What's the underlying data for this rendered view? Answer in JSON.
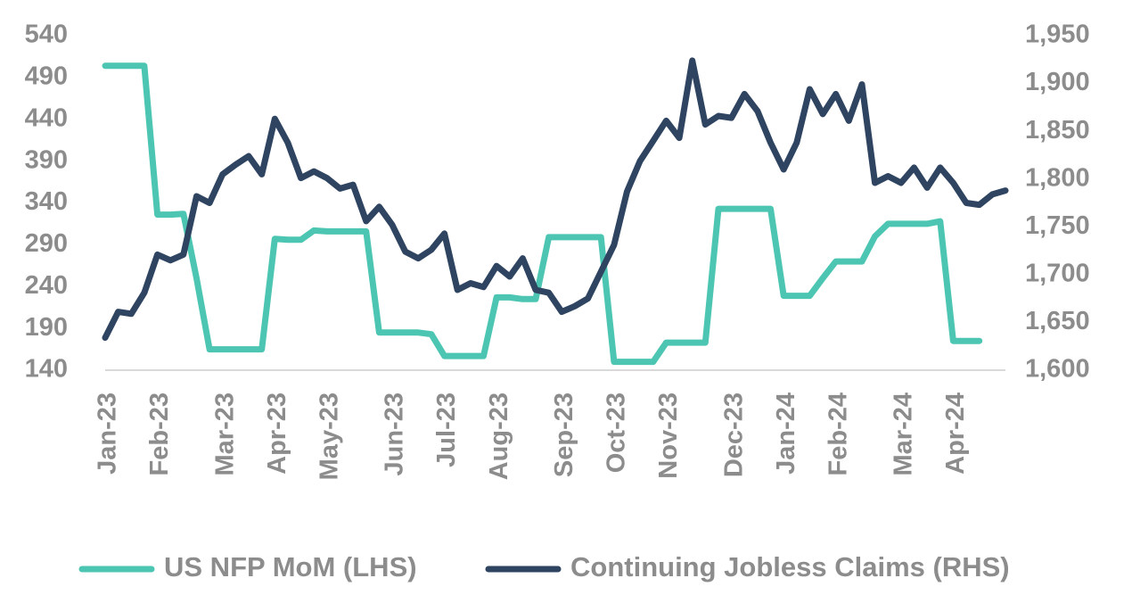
{
  "chart_data": {
    "type": "line",
    "categories": [
      "Jan-23",
      null,
      null,
      null,
      "Feb-23",
      null,
      null,
      null,
      null,
      "Mar-23",
      null,
      null,
      null,
      "Apr-23",
      null,
      null,
      null,
      "May-23",
      null,
      null,
      null,
      null,
      "Jun-23",
      null,
      null,
      null,
      "Jul-23",
      null,
      null,
      null,
      "Aug-23",
      null,
      null,
      null,
      null,
      "Sep-23",
      null,
      null,
      null,
      "Oct-23",
      null,
      null,
      null,
      "Nov-23",
      null,
      null,
      null,
      null,
      "Dec-23",
      null,
      null,
      null,
      "Jan-24",
      null,
      null,
      null,
      "Feb-24",
      null,
      null,
      null,
      null,
      "Mar-24",
      null,
      null,
      null,
      "Apr-24",
      null,
      null,
      null,
      null
    ],
    "series": [
      {
        "name": "US NFP MoM (LHS)",
        "color": "#4cc6b2",
        "axis": "y",
        "values": [
          504,
          504,
          504,
          504,
          326,
          326,
          327,
          250,
          165,
          165,
          165,
          165,
          165,
          297,
          296,
          296,
          307,
          306,
          306,
          306,
          306,
          185,
          185,
          185,
          185,
          183,
          157,
          157,
          157,
          157,
          227,
          227,
          225,
          225,
          299,
          299,
          299,
          299,
          299,
          150,
          150,
          150,
          150,
          173,
          173,
          173,
          173,
          333,
          333,
          333,
          333,
          333,
          229,
          229,
          229,
          250,
          270,
          270,
          270,
          300,
          315,
          315,
          315,
          315,
          318,
          175,
          175,
          175,
          null,
          null
        ]
      },
      {
        "name": "Continuing Jobless Claims (RHS)",
        "color": "#2e4461",
        "axis": "y2",
        "values": [
          1634,
          1661,
          1659,
          1681,
          1721,
          1715,
          1721,
          1782,
          1775,
          1805,
          1815,
          1824,
          1805,
          1863,
          1838,
          1801,
          1808,
          1801,
          1790,
          1794,
          1756,
          1771,
          1752,
          1724,
          1717,
          1726,
          1743,
          1684,
          1691,
          1687,
          1709,
          1698,
          1717,
          1684,
          1681,
          1661,
          1667,
          1675,
          1703,
          1731,
          1787,
          1819,
          1840,
          1861,
          1843,
          1924,
          1857,
          1866,
          1864,
          1889,
          1871,
          1838,
          1810,
          1838,
          1894,
          1868,
          1889,
          1861,
          1899,
          1796,
          1803,
          1796,
          1812,
          1791,
          1812,
          1796,
          1775,
          1773,
          1784,
          1788
        ]
      }
    ],
    "ylim": [
      140,
      540
    ],
    "yticks": [
      140,
      190,
      240,
      290,
      340,
      390,
      440,
      490,
      540
    ],
    "y2lim": [
      1600,
      1950
    ],
    "y2ticks": [
      {
        "value": 1600,
        "label": "1,600"
      },
      {
        "value": 1650,
        "label": "1,650"
      },
      {
        "value": 1700,
        "label": "1,700"
      },
      {
        "value": 1750,
        "label": "1,750"
      },
      {
        "value": 1800,
        "label": "1,800"
      },
      {
        "value": 1850,
        "label": "1,850"
      },
      {
        "value": 1900,
        "label": "1,900"
      },
      {
        "value": 1950,
        "label": "1,950"
      }
    ],
    "legend": "bottom",
    "grid": false
  }
}
